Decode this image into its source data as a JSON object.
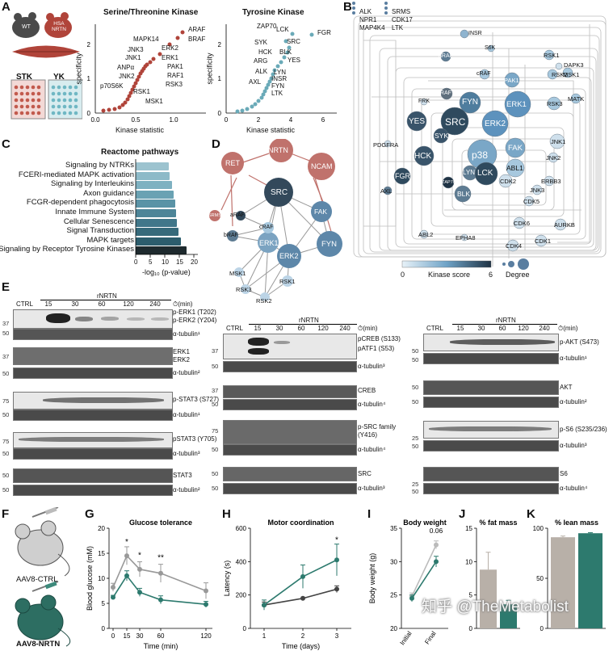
{
  "panels": {
    "A": {
      "letter": "A",
      "mouse_wt": "WT",
      "mouse_hsa": "HSA\nNRTN",
      "stk": "STK",
      "yk": "YK",
      "stk_title": "Serine/Threonine Kinase",
      "yk_title": "Tyrosine Kinase",
      "xlabel": "Kinase statistic",
      "ylabel": "specificity",
      "stk_labels": [
        "ARAF",
        "BRAF",
        "MAPK14",
        "ERK2",
        "JNK3",
        "ERK1",
        "JNK1",
        "PAK1",
        "ANPα",
        "RAF1",
        "JNK2",
        "RSK3",
        "RSK1",
        "p70S6K",
        "MSK1"
      ],
      "yk_labels": [
        "ZAP70",
        "LCK",
        "FGR",
        "SYK",
        "SRC",
        "HCK",
        "BLK",
        "ARG",
        "YES",
        "ALK",
        "LYN",
        "AXL",
        "INSR",
        "FYN",
        "LTK"
      ]
    },
    "B": {
      "letter": "B",
      "legend_list1": [
        "ALK",
        "NPR1",
        "MAP4K4"
      ],
      "legend_list2": [
        "SRMS",
        "CDK17",
        "LTK"
      ],
      "kinase_score_label": "Kinase score",
      "scale_min": "0",
      "scale_max": "6",
      "degree_label": "Degree",
      "nodes": [
        "INSR",
        "S6K",
        "aRAF",
        "RSK1",
        "DAPK3",
        "bRAF",
        "cRAF",
        "PAK1",
        "RSK2",
        "MSK1",
        "FRK",
        "FYN",
        "ERK1",
        "RSK3",
        "MATK",
        "YES",
        "SRC",
        "ERK2",
        "SYK",
        "JNK1",
        "PDGFRA",
        "HCK",
        "p38",
        "FAK",
        "JNK2",
        "FGR",
        "ABL1",
        "LYN",
        "LCK",
        "ERBB3",
        "AXL",
        "ZAP70",
        "BLK",
        "CDK2",
        "JNK3",
        "CDK5",
        "CDK6",
        "AURKB",
        "ABL2",
        "EPHA8",
        "CDK4",
        "CDK1"
      ]
    },
    "C": {
      "letter": "C",
      "title": "Reactome pathways",
      "xlabel": "-log₁₀ (p-value)",
      "ticks": [
        "0",
        "5",
        "10",
        "15",
        "20"
      ],
      "pathways": [
        {
          "name": "Signaling by NTRKs",
          "value": 11.5
        },
        {
          "name": "FCERI-mediated MAPK activation",
          "value": 11.8
        },
        {
          "name": "Signaling by Interleukins",
          "value": 12.5
        },
        {
          "name": "Axon guidance",
          "value": 13.0
        },
        {
          "name": "FCGR-dependent phagocytosis",
          "value": 13.5
        },
        {
          "name": "Innate Immune System",
          "value": 14.0
        },
        {
          "name": "Cellular Senescence",
          "value": 14.3
        },
        {
          "name": "Signal Transduction",
          "value": 14.8
        },
        {
          "name": "MAPK targets",
          "value": 15.5
        },
        {
          "name": "Signaling by Receptor Tyrosine Kinases",
          "value": 17.5
        }
      ]
    },
    "D": {
      "letter": "D",
      "nodes": [
        "NRTN",
        "RET",
        "NCAM",
        "SRC",
        "FAK",
        "FYN",
        "ERK1",
        "ERK2",
        "aRAF",
        "cRAF",
        "bRAF",
        "MSK1",
        "RSK1",
        "RSK3",
        "RSK2",
        "SRMS"
      ]
    },
    "E": {
      "letter": "E",
      "ctrl": "CTRL",
      "rnrtn": "rNRTN",
      "min_unit": "(min)",
      "lanes": [
        "15",
        "30",
        "60",
        "120",
        "240"
      ],
      "col1": {
        "b1": [
          "p-ERK1 (T202)",
          "p-ERK2 (Y204)"
        ],
        "b1_tub": "α-tubulin¹",
        "b2": [
          "ERK1",
          "ERK2"
        ],
        "b2_tub": "α-tubulin²",
        "b3": "p-STAT3 (S727)",
        "b3_tub": "α-tubulin¹",
        "b4": "pSTAT3 (Y705)",
        "b4_tub": "α-tubulin³",
        "b5": "STAT3",
        "b5_tub": "α-tubulin²"
      },
      "col2": {
        "b1": [
          "pCREB (S133)",
          "pATF1 (S53)"
        ],
        "b1_tub": "α-tubulin³",
        "b2": "CREB",
        "b2_tub": "α-tubulin⁴",
        "b3": [
          "p-SRC family",
          "(Y416)"
        ],
        "b3_tub": "α-tubulin⁴",
        "b4": "SRC",
        "b4_tub": "α-tubulin³"
      },
      "col3": {
        "b1": "p-AKT (S473)",
        "b1_tub": "α-tubulin¹",
        "b2": "AKT",
        "b2_tub": "α-tubulin²",
        "b3": "p-S6 (S235/236)",
        "b3_tub": "α-tubulin³",
        "b4": "S6",
        "b4_tub": "α-tubulin⁴"
      },
      "mw": [
        "37",
        "50",
        "37",
        "50",
        "75",
        "50",
        "75",
        "50",
        "50",
        "50",
        "37",
        "50",
        "37",
        "50",
        "75",
        "50",
        "50",
        "50",
        "50",
        "50",
        "50",
        "50",
        "25",
        "50",
        "25",
        "50"
      ]
    },
    "F": {
      "letter": "F",
      "ctrl_label": "AAV8-CTRL",
      "nrtn_label": "AAV8-NRTN"
    },
    "G": {
      "letter": "G"
    },
    "H": {
      "letter": "H"
    },
    "I": {
      "letter": "I"
    },
    "J": {
      "letter": "J"
    },
    "K": {
      "letter": "K"
    }
  },
  "chart_data": [
    {
      "type": "line",
      "title": "Glucose tolerance",
      "xlabel": "Time (min)",
      "ylabel": "Blood glucose (mM)",
      "x": [
        0,
        15,
        30,
        60,
        120
      ],
      "ylim": [
        0,
        20
      ],
      "xticks": [
        "0",
        "15",
        "30",
        "60",
        "120"
      ],
      "yticks": [
        "0",
        "5",
        "10",
        "15",
        "20"
      ],
      "series": [
        {
          "name": "AAV8-CTRL",
          "color": "#999999",
          "values": [
            8.2,
            14.5,
            11.8,
            11.0,
            7.5
          ]
        },
        {
          "name": "AAV8-NRTN",
          "color": "#2d7a6e",
          "values": [
            6.2,
            10.5,
            7.2,
            5.7,
            4.8
          ]
        }
      ],
      "annotations": [
        "*",
        "*",
        "**"
      ]
    },
    {
      "type": "line",
      "title": "Motor coordination",
      "xlabel": "Time (days)",
      "ylabel": "Latency (s)",
      "x": [
        1,
        2,
        3
      ],
      "ylim": [
        0,
        600
      ],
      "xticks": [
        "1",
        "2",
        "3"
      ],
      "yticks": [
        "0",
        "200",
        "400",
        "600"
      ],
      "series": [
        {
          "name": "AAV8-CTRL",
          "color": "#444444",
          "values": [
            140,
            180,
            235
          ]
        },
        {
          "name": "AAV8-NRTN",
          "color": "#2d7a6e",
          "values": [
            140,
            310,
            410
          ]
        }
      ],
      "annotations": [
        "*"
      ]
    },
    {
      "type": "line",
      "title": "Body weight",
      "ylabel": "Body weight (g)",
      "categories": [
        "Initial",
        "Final"
      ],
      "ylim": [
        20,
        35
      ],
      "yticks": [
        "20",
        "25",
        "30",
        "35"
      ],
      "series": [
        {
          "name": "AAV8-CTRL",
          "color": "#bbbbbb",
          "values": [
            24.8,
            32.5
          ]
        },
        {
          "name": "AAV8-NRTN",
          "color": "#2d7a6e",
          "values": [
            24.5,
            30.0
          ]
        }
      ],
      "annotations": [
        "0.06"
      ]
    },
    {
      "type": "bar",
      "title": "% fat mass",
      "ylim": [
        0,
        15
      ],
      "yticks": [
        "0",
        "5",
        "10",
        "15"
      ],
      "categories": [
        "AAV8-CTRL",
        "AAV8-NRTN"
      ],
      "values": [
        8.8,
        3.6
      ],
      "colors": [
        "#b8b0a8",
        "#2d7a6e"
      ]
    },
    {
      "type": "bar",
      "title": "% lean mass",
      "ylim": [
        0,
        100
      ],
      "yticks": [
        "0",
        "50",
        "100"
      ],
      "categories": [
        "AAV8-CTRL",
        "AAV8-NRTN"
      ],
      "values": [
        91,
        95
      ],
      "colors": [
        "#b8b0a8",
        "#2d7a6e"
      ]
    }
  ],
  "watermark": "知乎 @TheMetabolist"
}
